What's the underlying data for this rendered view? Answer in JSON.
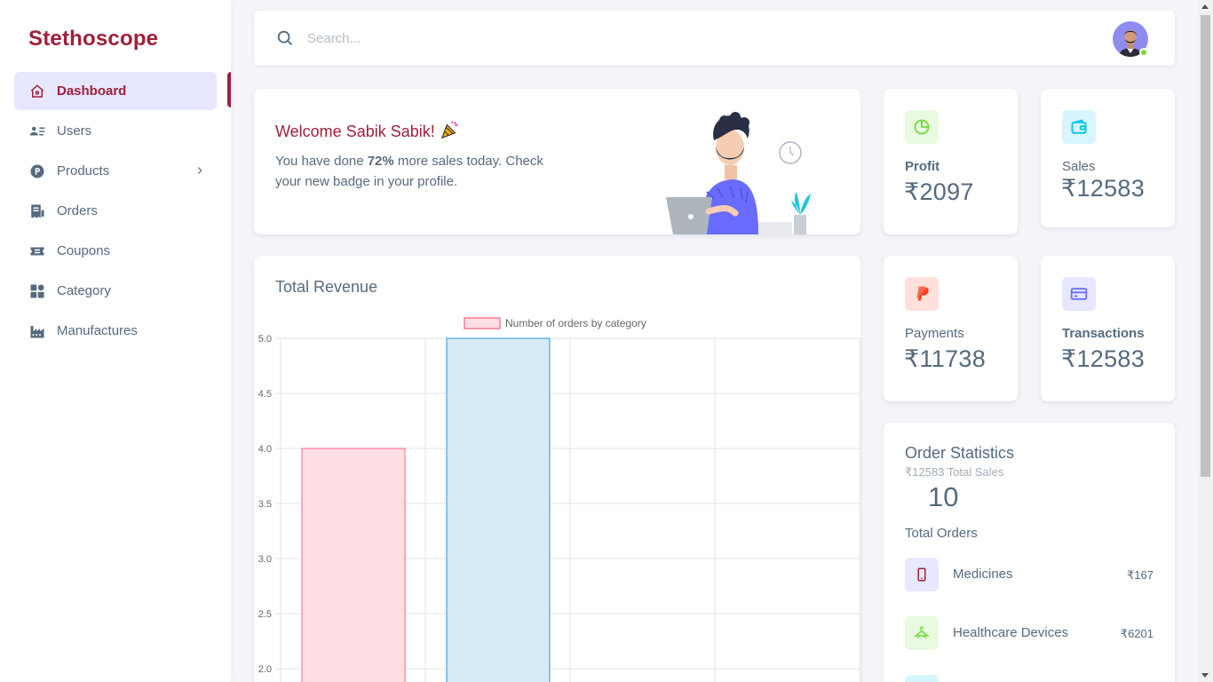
{
  "brand": "Stethoscope",
  "sidebar": {
    "items": [
      {
        "label": "Dashboard"
      },
      {
        "label": "Users"
      },
      {
        "label": "Products"
      },
      {
        "label": "Orders"
      },
      {
        "label": "Coupons"
      },
      {
        "label": "Category"
      },
      {
        "label": "Manufactures"
      }
    ]
  },
  "search": {
    "placeholder": "Search..."
  },
  "welcome": {
    "title": "Welcome Sabik Sabik!",
    "text_before": "You have done ",
    "highlight": "72%",
    "text_after": " more sales today. Check your new badge in your profile."
  },
  "stats": {
    "profit": {
      "label": "Profit",
      "value": "₹2097",
      "icon": "pie-chart-icon",
      "color": "#71dd37",
      "bg": "#e8fadf"
    },
    "sales": {
      "label": "Sales",
      "value": "₹12583",
      "icon": "wallet-icon",
      "color": "#03c3ec",
      "bg": "#d7f5fc"
    },
    "payments": {
      "label": "Payments",
      "value": "₹11738",
      "icon": "paypal-icon",
      "color": "#ff3e1d",
      "bg": "#ffe0db"
    },
    "transactions": {
      "label": "Transactions",
      "value": "₹12583",
      "icon": "credit-card-icon",
      "color": "#696cff",
      "bg": "#e7e7ff"
    }
  },
  "revenue": {
    "title": "Total Revenue"
  },
  "chart_data": {
    "type": "bar",
    "title": "",
    "legend": [
      "Number of orders by category"
    ],
    "legend_position": "top",
    "series": [
      {
        "name": "Number of orders by category",
        "values": [
          4,
          5
        ]
      }
    ],
    "bar_colors": [
      {
        "fill": "#ffdde4",
        "stroke": "#ff7a96"
      },
      {
        "fill": "#d6eaf8",
        "stroke": "#47a3e6"
      }
    ],
    "ylim_visible": [
      2.0,
      5.0
    ],
    "yticks": [
      "5.0",
      "4.5",
      "4.0",
      "3.5",
      "3.0",
      "2.5",
      "2.0"
    ],
    "grid": true
  },
  "order_stats": {
    "title": "Order Statistics",
    "subtitle": "₹12583 Total Sales",
    "total": "10",
    "total_label": "Total Orders",
    "items": [
      {
        "name": "Medicines",
        "value": "₹167",
        "icon": "mobile-icon",
        "color": "#a0203a",
        "bg": "#e7e7ff"
      },
      {
        "name": "Healthcare Devices",
        "value": "₹6201",
        "icon": "hanger-icon",
        "color": "#71dd37",
        "bg": "#e8fadf"
      }
    ]
  },
  "colors": {
    "brand": "#a0203a",
    "text": "#566a7f",
    "active_bg": "#e7e7ff",
    "bg": "#f5f5f9"
  }
}
